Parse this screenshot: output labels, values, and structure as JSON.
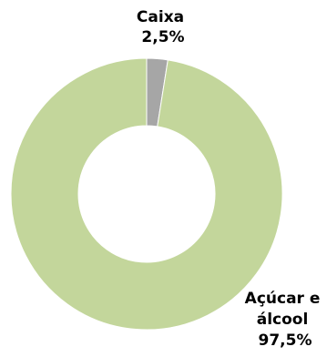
{
  "chart_data": {
    "type": "pie",
    "variant": "donut",
    "title": "",
    "slices": [
      {
        "label_lines": [
          "Caixa"
        ],
        "value_label": "2,5%",
        "value": 2.5,
        "color": "#a6a6a6"
      },
      {
        "label_lines": [
          "Açúcar e",
          "álcool"
        ],
        "value_label": "97,5%",
        "value": 97.5,
        "color": "#c3d69b"
      }
    ],
    "legend": "none"
  }
}
